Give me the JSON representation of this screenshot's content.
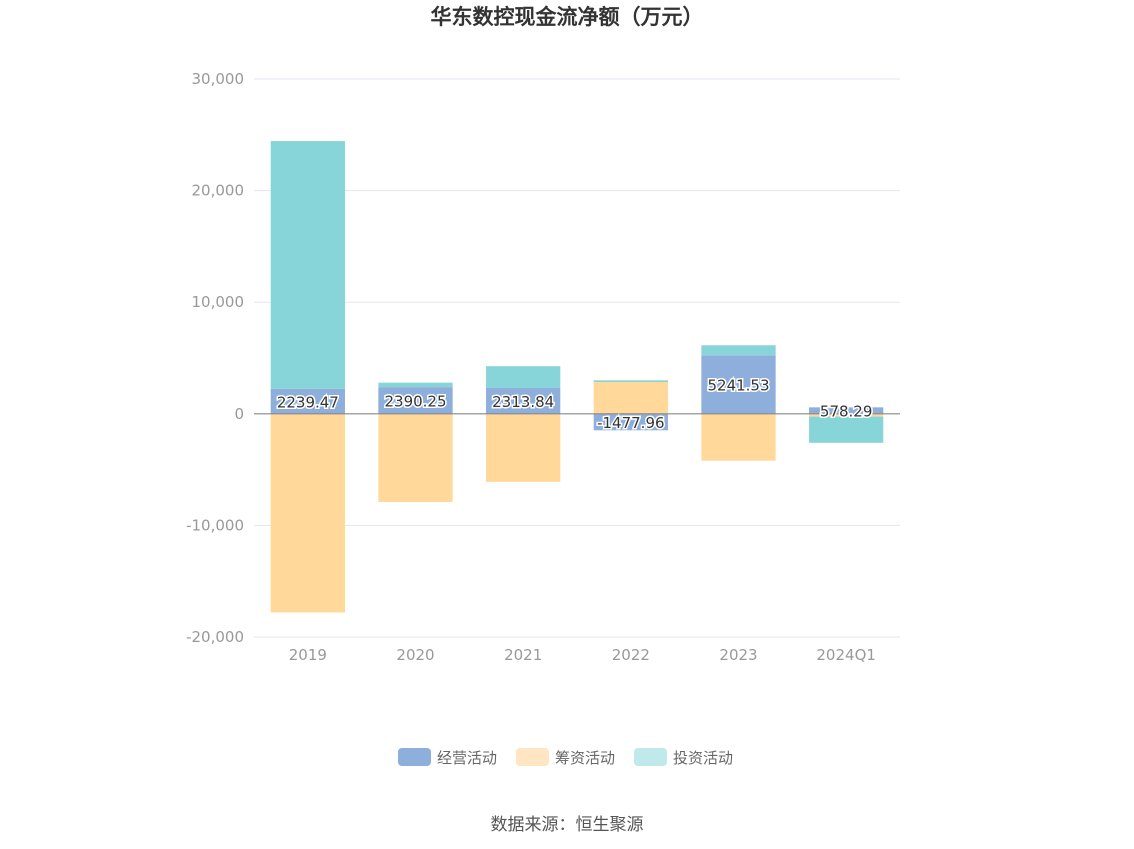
{
  "chart_data": {
    "type": "bar",
    "stacked": true,
    "title": "华东数控现金流净额（万元）",
    "categories": [
      "2019",
      "2020",
      "2021",
      "2022",
      "2023",
      "2024Q1"
    ],
    "series": [
      {
        "name": "经营活动",
        "color": "#8eaedc",
        "values": [
          2239.47,
          2390.25,
          2313.84,
          -1477.96,
          5241.53,
          578.29
        ]
      },
      {
        "name": "筹资活动",
        "color": "#ffd89a",
        "values": [
          -17800,
          -7900,
          -6100,
          2850,
          -4200,
          -250
        ]
      },
      {
        "name": "投资活动",
        "color": "#88d5d9",
        "values": [
          22200,
          400,
          1950,
          150,
          900,
          -2350
        ]
      }
    ],
    "data_labels": [
      "2239.47",
      "2390.25",
      "2313.84",
      "-1477.96",
      "5241.53",
      "578.29"
    ],
    "ylim": [
      -20000,
      30000
    ],
    "yticks": [
      30000,
      20000,
      10000,
      0,
      -10000,
      -20000
    ],
    "ytick_labels": [
      "30,000",
      "20,000",
      "10,000",
      "0",
      "-10,000",
      "-20,000"
    ],
    "grid": true,
    "legend_position": "bottom",
    "legend_swatch_colors": [
      "#8eaedc",
      "#ffe5c2",
      "#c0e9eb"
    ],
    "source": "数据来源：恒生聚源"
  }
}
